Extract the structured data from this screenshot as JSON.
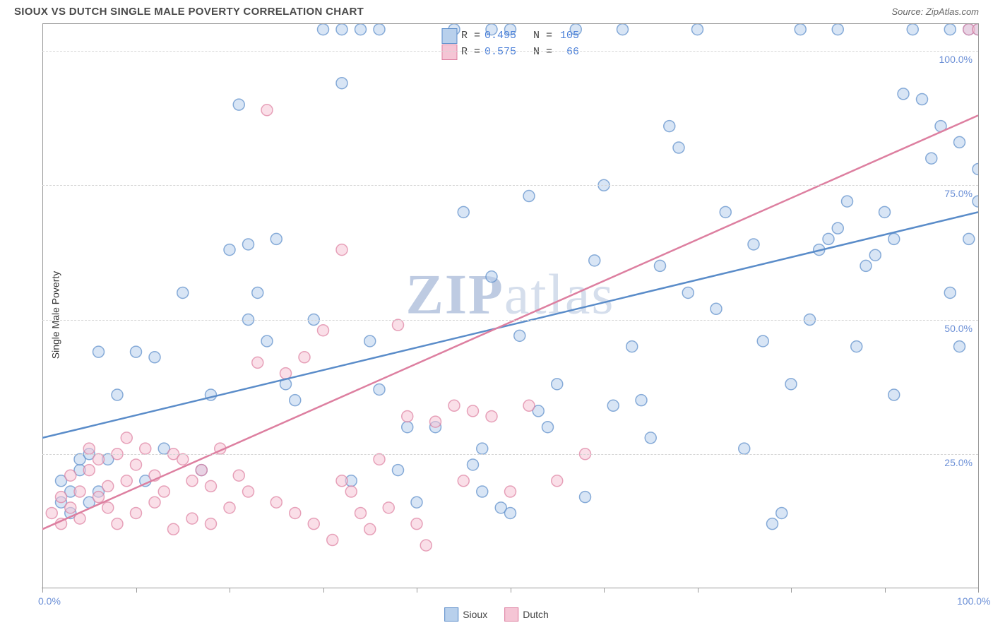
{
  "title": "SIOUX VS DUTCH SINGLE MALE POVERTY CORRELATION CHART",
  "source": "Source: ZipAtlas.com",
  "ylabel": "Single Male Poverty",
  "watermark": {
    "bold": "ZIP",
    "rest": "atlas"
  },
  "chart": {
    "type": "scatter",
    "background_color": "#ffffff",
    "grid_color": "#d5d5d5",
    "axis_color": "#999999",
    "tick_label_color": "#6b8fd6",
    "xlim": [
      0,
      100
    ],
    "ylim": [
      0,
      105
    ],
    "x_ticks": [
      0,
      10,
      20,
      30,
      40,
      50,
      60,
      70,
      80,
      90,
      100
    ],
    "x_tick_labels": {
      "0": "0.0%",
      "100": "100.0%"
    },
    "y_gridlines": [
      25,
      50,
      75,
      100
    ],
    "y_tick_labels": {
      "25": "25.0%",
      "50": "50.0%",
      "75": "75.0%",
      "100": "100.0%"
    },
    "marker_radius": 8,
    "marker_stroke_width": 1.5,
    "marker_fill_opacity": 0.25,
    "line_width": 2.5,
    "series": [
      {
        "name": "Sioux",
        "color": "#6b9bd8",
        "fill": "#b8d0ec",
        "stroke": "#5a8cc9",
        "R": "0.495",
        "N": "105",
        "regression": {
          "x1": 0,
          "y1": 28,
          "x2": 100,
          "y2": 70
        },
        "points": [
          [
            2,
            16
          ],
          [
            2,
            20
          ],
          [
            3,
            18
          ],
          [
            3,
            14
          ],
          [
            4,
            22
          ],
          [
            4,
            24
          ],
          [
            5,
            25
          ],
          [
            5,
            16
          ],
          [
            6,
            18
          ],
          [
            6,
            44
          ],
          [
            7,
            24
          ],
          [
            8,
            36
          ],
          [
            10,
            44
          ],
          [
            11,
            20
          ],
          [
            12,
            43
          ],
          [
            13,
            26
          ],
          [
            15,
            55
          ],
          [
            17,
            22
          ],
          [
            18,
            36
          ],
          [
            20,
            63
          ],
          [
            21,
            90
          ],
          [
            22,
            50
          ],
          [
            22,
            64
          ],
          [
            23,
            55
          ],
          [
            24,
            46
          ],
          [
            25,
            65
          ],
          [
            26,
            38
          ],
          [
            27,
            35
          ],
          [
            29,
            50
          ],
          [
            30,
            104
          ],
          [
            32,
            104
          ],
          [
            32,
            94
          ],
          [
            33,
            20
          ],
          [
            34,
            104
          ],
          [
            35,
            46
          ],
          [
            36,
            37
          ],
          [
            36,
            104
          ],
          [
            38,
            22
          ],
          [
            39,
            30
          ],
          [
            40,
            16
          ],
          [
            42,
            30
          ],
          [
            44,
            104
          ],
          [
            45,
            70
          ],
          [
            46,
            23
          ],
          [
            47,
            18
          ],
          [
            47,
            26
          ],
          [
            48,
            58
          ],
          [
            48,
            104
          ],
          [
            49,
            15
          ],
          [
            50,
            14
          ],
          [
            50,
            104
          ],
          [
            51,
            47
          ],
          [
            52,
            73
          ],
          [
            53,
            33
          ],
          [
            54,
            30
          ],
          [
            55,
            38
          ],
          [
            57,
            104
          ],
          [
            58,
            17
          ],
          [
            59,
            61
          ],
          [
            60,
            75
          ],
          [
            61,
            34
          ],
          [
            62,
            104
          ],
          [
            63,
            45
          ],
          [
            64,
            35
          ],
          [
            65,
            28
          ],
          [
            66,
            60
          ],
          [
            67,
            86
          ],
          [
            68,
            82
          ],
          [
            69,
            55
          ],
          [
            70,
            104
          ],
          [
            72,
            52
          ],
          [
            73,
            70
          ],
          [
            75,
            26
          ],
          [
            76,
            64
          ],
          [
            77,
            46
          ],
          [
            78,
            12
          ],
          [
            79,
            14
          ],
          [
            80,
            38
          ],
          [
            81,
            104
          ],
          [
            82,
            50
          ],
          [
            83,
            63
          ],
          [
            84,
            65
          ],
          [
            85,
            67
          ],
          [
            85,
            104
          ],
          [
            86,
            72
          ],
          [
            87,
            45
          ],
          [
            88,
            60
          ],
          [
            89,
            62
          ],
          [
            90,
            70
          ],
          [
            91,
            36
          ],
          [
            91,
            65
          ],
          [
            92,
            92
          ],
          [
            93,
            104
          ],
          [
            94,
            91
          ],
          [
            95,
            80
          ],
          [
            96,
            86
          ],
          [
            97,
            55
          ],
          [
            97,
            104
          ],
          [
            98,
            45
          ],
          [
            98,
            83
          ],
          [
            99,
            65
          ],
          [
            99,
            104
          ],
          [
            100,
            72
          ],
          [
            100,
            78
          ],
          [
            100,
            104
          ]
        ]
      },
      {
        "name": "Dutch",
        "color": "#e895b0",
        "fill": "#f5c5d5",
        "stroke": "#dd7fa0",
        "R": "0.575",
        "N": "66",
        "regression": {
          "x1": 0,
          "y1": 11,
          "x2": 100,
          "y2": 88
        },
        "points": [
          [
            1,
            14
          ],
          [
            2,
            12
          ],
          [
            2,
            17
          ],
          [
            3,
            15
          ],
          [
            3,
            21
          ],
          [
            4,
            18
          ],
          [
            4,
            13
          ],
          [
            5,
            22
          ],
          [
            5,
            26
          ],
          [
            6,
            17
          ],
          [
            6,
            24
          ],
          [
            7,
            15
          ],
          [
            7,
            19
          ],
          [
            8,
            25
          ],
          [
            8,
            12
          ],
          [
            9,
            28
          ],
          [
            9,
            20
          ],
          [
            10,
            14
          ],
          [
            10,
            23
          ],
          [
            11,
            26
          ],
          [
            12,
            16
          ],
          [
            12,
            21
          ],
          [
            13,
            18
          ],
          [
            14,
            25
          ],
          [
            14,
            11
          ],
          [
            15,
            24
          ],
          [
            16,
            20
          ],
          [
            16,
            13
          ],
          [
            17,
            22
          ],
          [
            18,
            12
          ],
          [
            18,
            19
          ],
          [
            19,
            26
          ],
          [
            20,
            15
          ],
          [
            21,
            21
          ],
          [
            22,
            18
          ],
          [
            23,
            42
          ],
          [
            24,
            89
          ],
          [
            25,
            16
          ],
          [
            26,
            40
          ],
          [
            27,
            14
          ],
          [
            28,
            43
          ],
          [
            29,
            12
          ],
          [
            30,
            48
          ],
          [
            31,
            9
          ],
          [
            32,
            20
          ],
          [
            32,
            63
          ],
          [
            33,
            18
          ],
          [
            34,
            14
          ],
          [
            35,
            11
          ],
          [
            36,
            24
          ],
          [
            37,
            15
          ],
          [
            38,
            49
          ],
          [
            39,
            32
          ],
          [
            40,
            12
          ],
          [
            41,
            8
          ],
          [
            42,
            31
          ],
          [
            44,
            34
          ],
          [
            45,
            20
          ],
          [
            46,
            33
          ],
          [
            48,
            32
          ],
          [
            50,
            18
          ],
          [
            52,
            34
          ],
          [
            55,
            20
          ],
          [
            58,
            25
          ],
          [
            99,
            104
          ],
          [
            100,
            104
          ]
        ]
      }
    ],
    "legend_bottom": [
      {
        "label": "Sioux",
        "fill": "#b8d0ec",
        "stroke": "#5a8cc9"
      },
      {
        "label": "Dutch",
        "fill": "#f5c5d5",
        "stroke": "#dd7fa0"
      }
    ]
  }
}
